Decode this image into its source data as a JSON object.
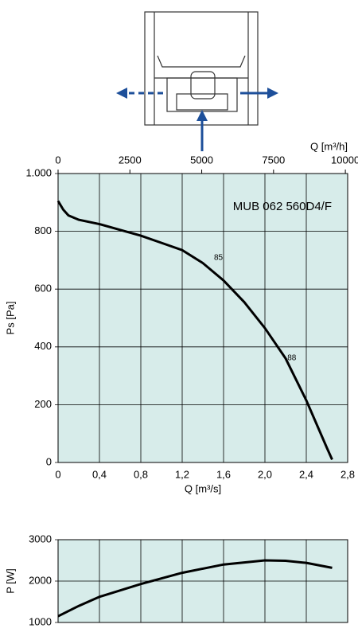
{
  "chart_data": [
    {
      "type": "line",
      "title": "MUB 062 560D4/F",
      "xlabel": "Q [m³/s]",
      "ylabel": "Ps [Pa]",
      "x2label": "Q [m³/h]",
      "xlim": [
        0,
        2.8
      ],
      "xticks": [
        0,
        {
          "value": 0.4,
          "label": "0,4"
        },
        {
          "value": 0.8,
          "label": "0,8"
        },
        {
          "value": 1.2,
          "label": "1,2"
        },
        {
          "value": 1.6,
          "label": "1,6"
        },
        {
          "value": 2.0,
          "label": "2,0"
        },
        {
          "value": 2.4,
          "label": "2,4"
        },
        {
          "value": 2.8,
          "label": "2,8"
        }
      ],
      "x2lim": [
        0,
        10080
      ],
      "x2ticks": [
        0,
        2500,
        5000,
        7500,
        10000
      ],
      "ylim": [
        0,
        1000
      ],
      "yticks": [
        0,
        200,
        400,
        600,
        800,
        {
          "value": 1000,
          "label": "1.000"
        }
      ],
      "grid": true,
      "background": "#d7ecea",
      "color": "#000000",
      "x": [
        0,
        0.05,
        0.1,
        0.2,
        0.4,
        0.6,
        0.8,
        1.0,
        1.2,
        1.4,
        1.6,
        1.8,
        2.0,
        2.2,
        2.4,
        2.6,
        2.65
      ],
      "values": [
        905,
        875,
        855,
        840,
        825,
        805,
        785,
        760,
        735,
        690,
        630,
        555,
        465,
        360,
        215,
        50,
        10
      ],
      "annotations": [
        {
          "text": "85",
          "x": 1.55,
          "y": 708
        },
        {
          "text": "88",
          "x": 2.26,
          "y": 361
        }
      ]
    },
    {
      "type": "line",
      "ylabel": "P [W]",
      "xlim": [
        0,
        2.8
      ],
      "xticks": [
        0,
        0.4,
        0.8,
        1.2,
        1.6,
        2.0,
        2.4,
        2.8
      ],
      "ylim": [
        1000,
        3000
      ],
      "yticks": [
        1000,
        2000,
        3000
      ],
      "grid": true,
      "background": "#d7ecea",
      "color": "#000000",
      "x": [
        0,
        0.2,
        0.4,
        0.8,
        1.2,
        1.6,
        2.0,
        2.2,
        2.4,
        2.65
      ],
      "values": [
        1150,
        1400,
        1620,
        1930,
        2200,
        2400,
        2500,
        2490,
        2440,
        2320
      ]
    }
  ]
}
